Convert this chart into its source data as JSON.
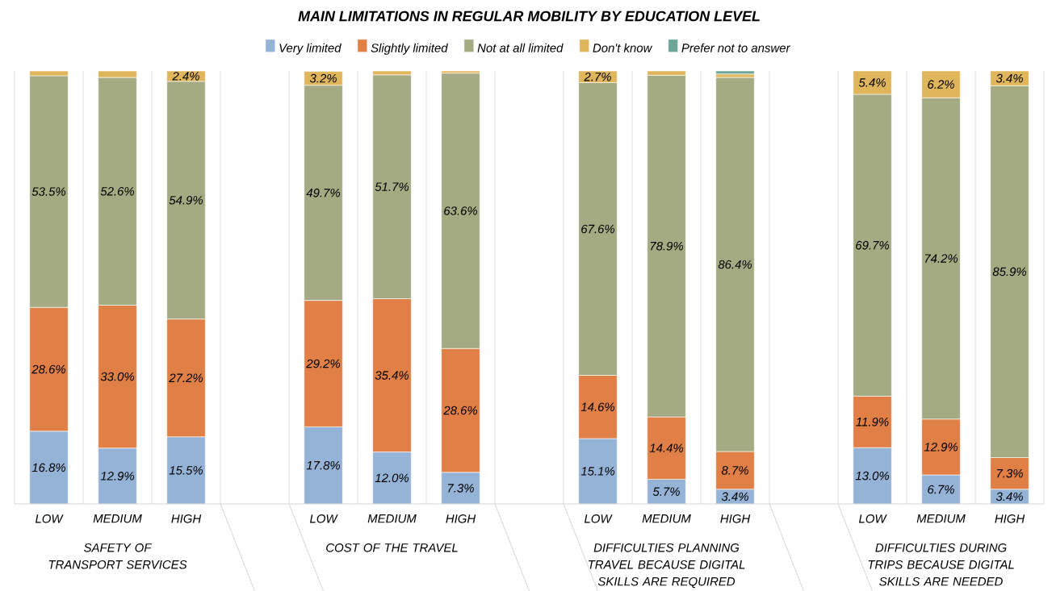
{
  "chart_data": {
    "type": "bar",
    "stacked": true,
    "title": "MAIN LIMITATIONS IN REGULAR MOBILITY BY EDUCATION LEVEL",
    "categories": [
      "LOW",
      "MEDIUM",
      "HIGH",
      null,
      "LOW",
      "MEDIUM",
      "HIGH",
      null,
      "LOW",
      "MEDIUM",
      "HIGH",
      null,
      "LOW",
      "MEDIUM",
      "HIGH"
    ],
    "annotations": [
      "SAFETY OF TRANSPORT SERVICES",
      "COST OF THE TRAVEL",
      "DIFFICULTIES PLANNING TRAVEL BECAUSE DIGITAL SKILLS ARE REQUIRED",
      "DIFFICULTIES DURING TRIPS BECAUSE DIGITAL SKILLS ARE NEEDED"
    ],
    "series": [
      {
        "name": "Very limited",
        "color": "#95b3d7",
        "values": [
          16.8,
          12.9,
          15.5,
          0,
          17.8,
          12.0,
          7.3,
          0,
          15.1,
          5.7,
          3.4,
          0,
          13.0,
          6.7,
          3.4
        ],
        "value_labels": [
          "16.8%",
          "12.9%",
          "15.5%",
          null,
          "17.8%",
          "12.0%",
          "7.3%",
          null,
          "15.1%",
          "5.7%",
          "3.4%",
          null,
          "13.0%",
          "6.7%",
          "3.4%"
        ]
      },
      {
        "name": "Slightly limited",
        "color": "#e07f46",
        "values": [
          28.6,
          33.0,
          27.2,
          0,
          29.2,
          35.4,
          28.6,
          0,
          14.6,
          14.4,
          8.7,
          0,
          11.9,
          12.9,
          7.3
        ],
        "value_labels": [
          "28.6%",
          "33.0%",
          "27.2%",
          null,
          "29.2%",
          "35.4%",
          "28.6%",
          null,
          "14.6%",
          "14.4%",
          "8.7%",
          null,
          "11.9%",
          "12.9%",
          "7.3%"
        ]
      },
      {
        "name": "Not at all limited",
        "color": "#a4ab82",
        "values": [
          53.5,
          52.6,
          54.9,
          0,
          49.7,
          51.7,
          63.6,
          0,
          67.6,
          78.9,
          86.4,
          0,
          69.7,
          74.2,
          85.9
        ],
        "value_labels": [
          "53.5%",
          "52.6%",
          "54.9%",
          null,
          "49.7%",
          "51.7%",
          "63.6%",
          null,
          "67.6%",
          "78.9%",
          "86.4%",
          null,
          "69.7%",
          "74.2%",
          "85.9%"
        ]
      },
      {
        "name": "Don't know",
        "color": "#e0b65c",
        "values": [
          1.1,
          1.5,
          2.4,
          0,
          3.2,
          0.9,
          0.5,
          0,
          2.7,
          1.0,
          0.8,
          0,
          5.4,
          6.2,
          3.4
        ],
        "value_labels": [
          null,
          null,
          "2.4%",
          null,
          "3.2%",
          null,
          null,
          null,
          "2.7%",
          null,
          null,
          null,
          "5.4%",
          "6.2%",
          "3.4%"
        ]
      },
      {
        "name": "Prefer not to answer",
        "color": "#6fa597",
        "values": [
          0,
          0,
          0,
          0,
          0,
          0,
          0,
          0,
          0,
          0,
          0.7,
          0,
          0,
          0,
          0
        ]
      }
    ],
    "ylim": [
      0,
      100
    ],
    "tick_labels": "x",
    "grid": "x",
    "legend": "top"
  }
}
